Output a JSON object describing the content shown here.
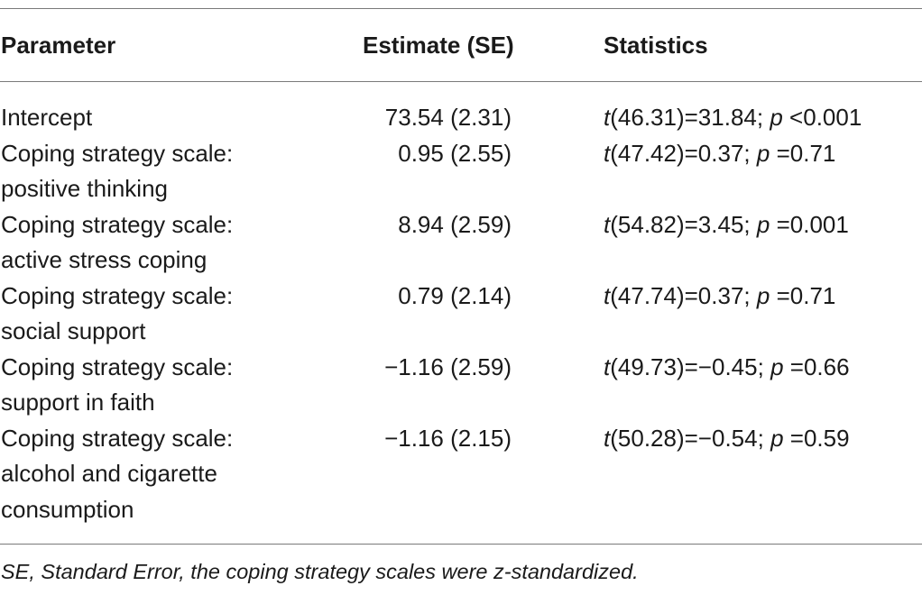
{
  "table": {
    "headers": {
      "parameter": "Parameter",
      "estimate": "Estimate (SE)",
      "statistics": "Statistics"
    },
    "rows": [
      {
        "parameter_lines": [
          "Intercept"
        ],
        "estimate": "73.54 (2.31)",
        "t_df": "(46.31)",
        "t_value": "=31.84;",
        "p_value": "<0.001"
      },
      {
        "parameter_lines": [
          "Coping strategy scale:",
          "positive thinking"
        ],
        "estimate": "0.95 (2.55)",
        "t_df": "(47.42)",
        "t_value": "=0.37;",
        "p_value": "=0.71"
      },
      {
        "parameter_lines": [
          "Coping strategy scale:",
          "active stress coping"
        ],
        "estimate": "8.94 (2.59)",
        "t_df": "(54.82)",
        "t_value": "=3.45;",
        "p_value": "=0.001"
      },
      {
        "parameter_lines": [
          "Coping strategy scale:",
          "social support"
        ],
        "estimate": "0.79 (2.14)",
        "t_df": "(47.74)",
        "t_value": "=0.37;",
        "p_value": "=0.71"
      },
      {
        "parameter_lines": [
          "Coping strategy scale:",
          "support in faith"
        ],
        "estimate": "−1.16 (2.59)",
        "t_df": "(49.73)",
        "t_value": "=−0.45;",
        "p_value": "=0.66"
      },
      {
        "parameter_lines": [
          "Coping strategy scale:",
          "alcohol and cigarette",
          "consumption"
        ],
        "estimate": "−1.16 (2.15)",
        "t_df": "(50.28)",
        "t_value": "=−0.54;",
        "p_value": "=0.59"
      }
    ],
    "t_symbol": "t",
    "p_symbol": "p",
    "footnote": "SE, Standard Error, the coping strategy scales were z-standardized."
  }
}
